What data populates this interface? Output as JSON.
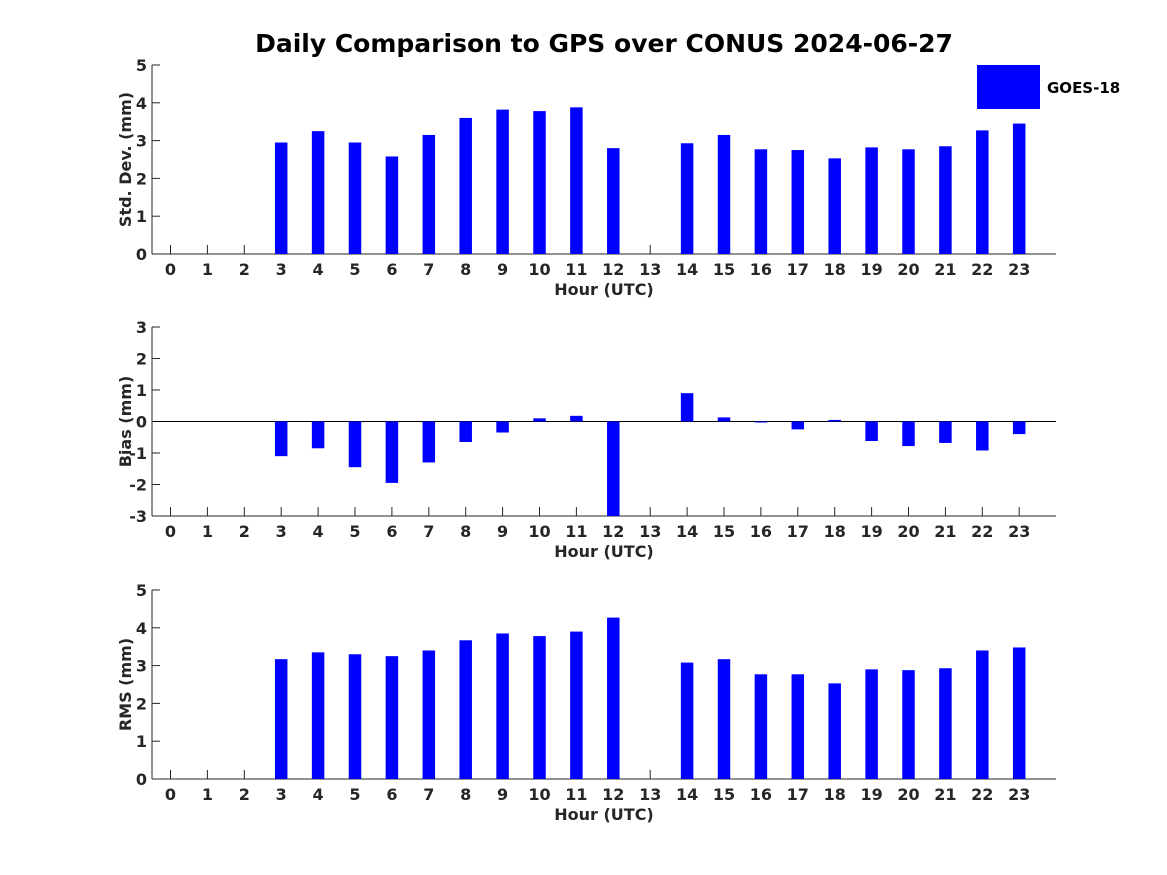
{
  "title": "Daily Comparison to GPS over CONUS 2024-06-27",
  "legend": {
    "label": "GOES-18",
    "color": "#0000ff"
  },
  "chart_data": [
    {
      "id": "std",
      "type": "bar",
      "ylabel": "Std. Dev. (mm)",
      "xlabel": "Hour (UTC)",
      "ylim": [
        0,
        5
      ],
      "yticks": [
        0,
        1,
        2,
        3,
        4,
        5
      ],
      "categories": [
        "0",
        "1",
        "2",
        "3",
        "4",
        "5",
        "6",
        "7",
        "8",
        "9",
        "10",
        "11",
        "12",
        "13",
        "14",
        "15",
        "16",
        "17",
        "18",
        "19",
        "20",
        "21",
        "22",
        "23"
      ],
      "series": [
        {
          "name": "GOES-18",
          "values": [
            null,
            null,
            null,
            2.95,
            3.25,
            2.95,
            2.58,
            3.15,
            3.6,
            3.82,
            3.78,
            3.88,
            2.8,
            null,
            2.93,
            3.15,
            2.77,
            2.75,
            2.53,
            2.82,
            2.77,
            2.85,
            3.27,
            3.45
          ]
        }
      ]
    },
    {
      "id": "bias",
      "type": "bar",
      "ylabel": "Bias (mm)",
      "xlabel": "Hour (UTC)",
      "ylim": [
        -3,
        3
      ],
      "yticks": [
        -3,
        -2,
        -1,
        0,
        1,
        2,
        3
      ],
      "zero_line": true,
      "categories": [
        "0",
        "1",
        "2",
        "3",
        "4",
        "5",
        "6",
        "7",
        "8",
        "9",
        "10",
        "11",
        "12",
        "13",
        "14",
        "15",
        "16",
        "17",
        "18",
        "19",
        "20",
        "21",
        "22",
        "23"
      ],
      "series": [
        {
          "name": "GOES-18",
          "values": [
            null,
            null,
            null,
            -1.1,
            -0.85,
            -1.45,
            -1.95,
            -1.3,
            -0.65,
            -0.35,
            0.1,
            0.18,
            -3.0,
            null,
            0.9,
            0.13,
            -0.02,
            -0.25,
            0.05,
            -0.62,
            -0.78,
            -0.68,
            -0.92,
            -0.4
          ]
        }
      ]
    },
    {
      "id": "rms",
      "type": "bar",
      "ylabel": "RMS (mm)",
      "xlabel": "Hour (UTC)",
      "ylim": [
        0,
        5
      ],
      "yticks": [
        0,
        1,
        2,
        3,
        4,
        5
      ],
      "categories": [
        "0",
        "1",
        "2",
        "3",
        "4",
        "5",
        "6",
        "7",
        "8",
        "9",
        "10",
        "11",
        "12",
        "13",
        "14",
        "15",
        "16",
        "17",
        "18",
        "19",
        "20",
        "21",
        "22",
        "23"
      ],
      "series": [
        {
          "name": "GOES-18",
          "values": [
            null,
            null,
            null,
            3.17,
            3.35,
            3.3,
            3.25,
            3.4,
            3.67,
            3.85,
            3.78,
            3.9,
            4.27,
            null,
            3.08,
            3.17,
            2.77,
            2.77,
            2.53,
            2.9,
            2.88,
            2.93,
            3.4,
            3.48
          ]
        }
      ]
    }
  ]
}
